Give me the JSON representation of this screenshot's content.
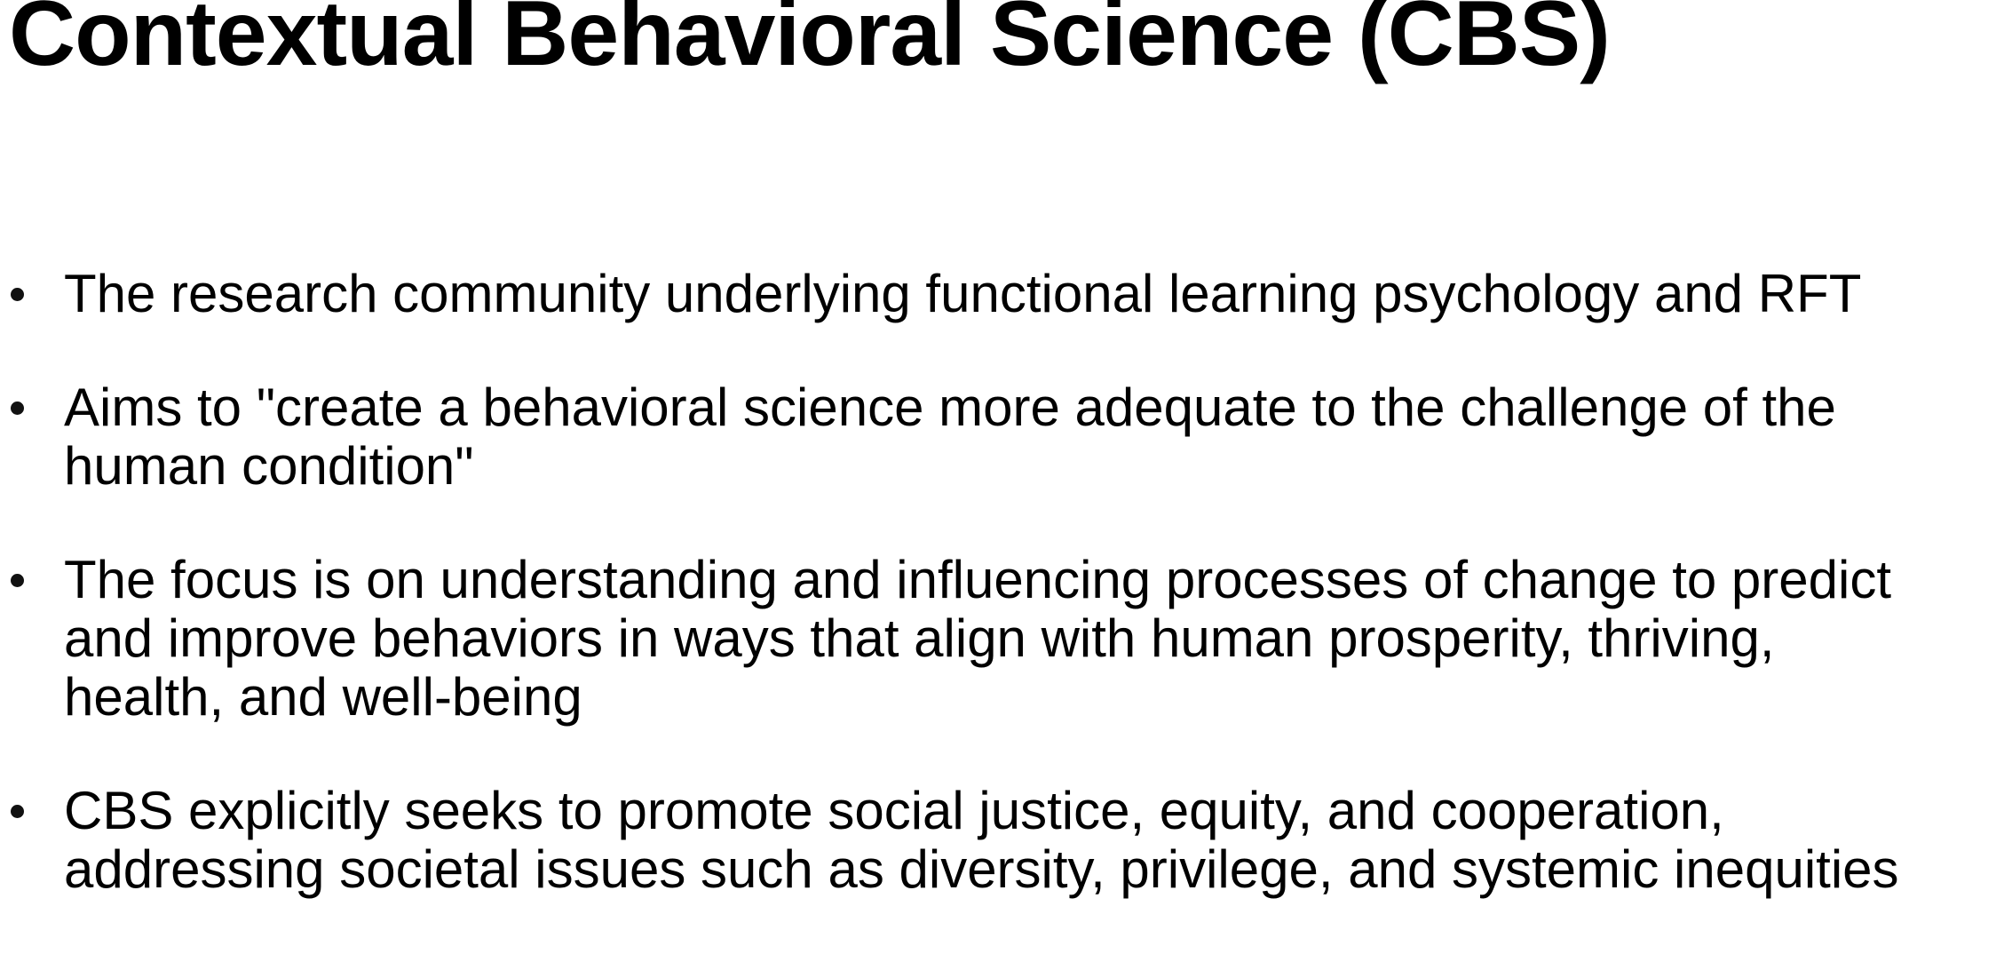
{
  "slide": {
    "title": "Contextual Behavioral Science (CBS)",
    "bullets": [
      {
        "lines": [
          "The research community underlying functional learning psychology and RFT"
        ]
      },
      {
        "lines": [
          "Aims to \"create a behavioral science more adequate to the challenge of the",
          "human condition\""
        ]
      },
      {
        "lines": [
          "The focus is on understanding and influencing processes of change to predict",
          "and improve behaviors in ways that align with human prosperity, thriving,",
          "health, and well-being"
        ]
      },
      {
        "lines": [
          "CBS explicitly seeks to promote social justice, equity, and cooperation,",
          "addressing societal issues such as diversity, privilege, and systemic inequities"
        ]
      }
    ]
  }
}
